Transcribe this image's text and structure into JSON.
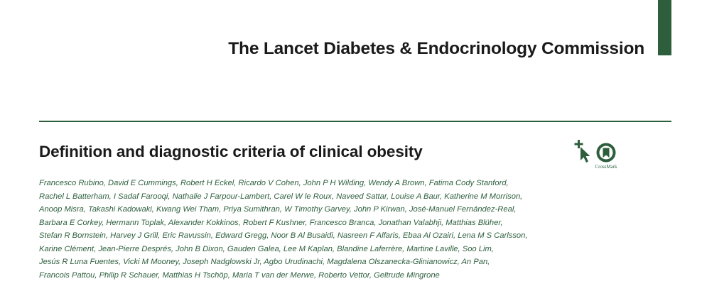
{
  "header": {
    "series_title": "The Lancet Diabetes & Endocrinology Commission"
  },
  "article": {
    "title": "Definition and diagnostic criteria of clinical obesity",
    "author_lines": [
      "Francesco Rubino, David E Cummings, Robert H Eckel, Ricardo V Cohen, John P H Wilding, Wendy A Brown, Fatima Cody Stanford,",
      "Rachel L Batterham, I Sadaf Farooqi, Nathalie J Farpour-Lambert, Carel W le Roux, Naveed Sattar, Louise A Baur, Katherine M Morrison,",
      "Anoop Misra, Takashi Kadowaki, Kwang Wei Tham, Priya Sumithran, W Timothy Garvey, John P Kirwan, José-Manuel Fernández-Real,",
      "Barbara E Corkey, Hermann Toplak, Alexander Kokkinos, Robert F Kushner, Francesco Branca, Jonathan Valabhji, Matthias Blüher,",
      "Stefan R Bornstein, Harvey J Grill, Eric Ravussin, Edward Gregg, Noor B Al Busaidi, Nasreen F Alfaris, Ebaa Al Ozairi, Lena M S Carlsson,",
      "Karine Clément, Jean-Pierre Després, John B Dixon, Gauden Galea, Lee M Kaplan, Blandine Laferrère, Martine Laville, Soo Lim,",
      "Jesús R Luna Fuentes, Vicki M Mooney, Joseph Nadglowski Jr, Agbo Urudinachi, Magdalena Olszanecka-Glinianowicz, An Pan,",
      "Francois Pattou, Philip R Schauer, Matthias H Tschöp, Maria T van der Merwe, Roberto Vettor, Geltrude Mingrone"
    ]
  },
  "crossmark": {
    "label": "CrossMark",
    "icon": "crossmark-icon"
  },
  "icons": {
    "check_updates": "check-for-updates-icon"
  },
  "colors": {
    "accent_green": "#2d5f3d",
    "text": "#1a1a1a",
    "background": "#ffffff"
  }
}
